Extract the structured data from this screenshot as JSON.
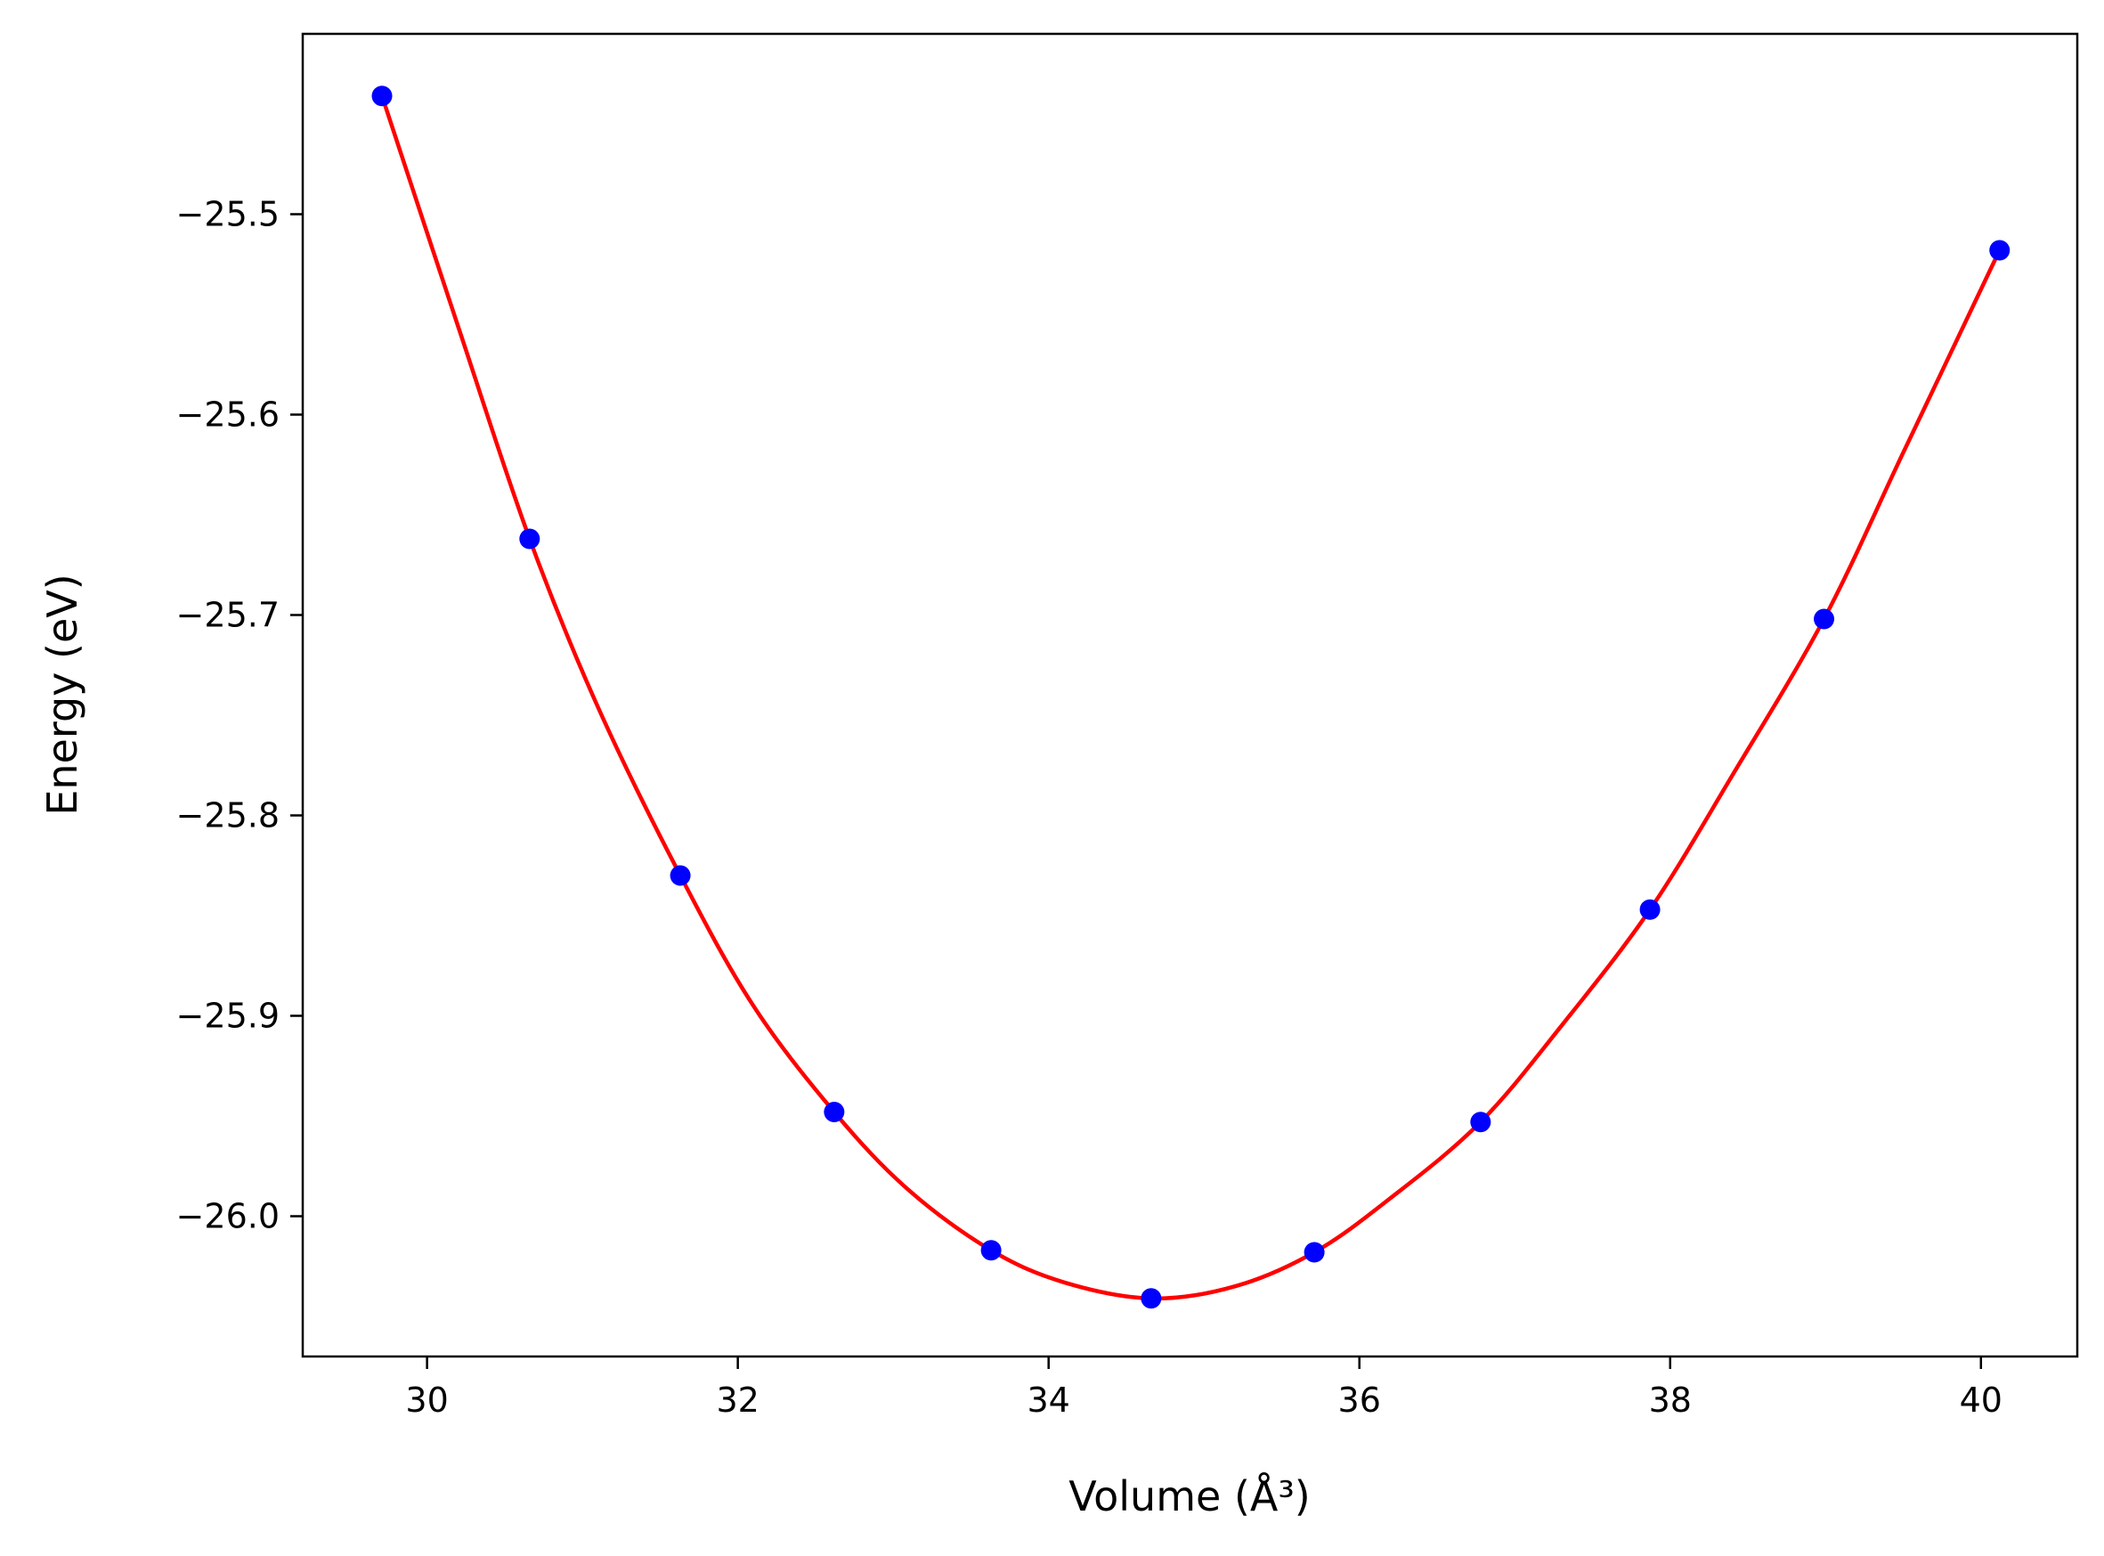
{
  "chart_data": {
    "type": "scatter",
    "title": "",
    "xlabel": "Volume (Å³)",
    "ylabel": "Energy (eV)",
    "xlim": [
      29.2,
      40.62
    ],
    "ylim": [
      -26.07,
      -25.41
    ],
    "x_ticks": [
      30,
      32,
      34,
      36,
      38,
      40
    ],
    "y_ticks": [
      -26.0,
      -25.9,
      -25.8,
      -25.7,
      -25.6,
      -25.5
    ],
    "x_tick_labels": [
      "30",
      "32",
      "34",
      "36",
      "38",
      "40"
    ],
    "y_tick_labels": [
      "−26.0",
      "−25.9",
      "−25.8",
      "−25.7",
      "−25.6",
      "−25.5"
    ],
    "grid": false,
    "series": [
      {
        "kind": "points",
        "color": "#0000ff",
        "x": [
          29.71,
          30.66,
          31.63,
          32.62,
          33.63,
          34.66,
          35.71,
          36.78,
          37.87,
          38.99,
          40.12
        ],
        "y": [
          -25.441,
          -25.662,
          -25.83,
          -25.948,
          -26.017,
          -26.041,
          -26.018,
          -25.953,
          -25.847,
          -25.702,
          -25.518
        ]
      },
      {
        "kind": "fit-curve",
        "color": "#ff0000",
        "x": [
          29.71,
          30.2,
          30.66,
          31.1,
          31.63,
          32.1,
          32.62,
          33.1,
          33.63,
          34.1,
          34.66,
          35.2,
          35.71,
          36.2,
          36.78,
          37.3,
          37.87,
          38.4,
          38.99,
          39.5,
          40.12
        ],
        "y": [
          -25.441,
          -25.556,
          -25.662,
          -25.746,
          -25.83,
          -25.895,
          -25.948,
          -25.987,
          -26.017,
          -26.033,
          -26.041,
          -26.035,
          -26.018,
          -25.991,
          -25.953,
          -25.905,
          -25.847,
          -25.78,
          -25.702,
          -25.619,
          -25.518
        ]
      }
    ]
  }
}
